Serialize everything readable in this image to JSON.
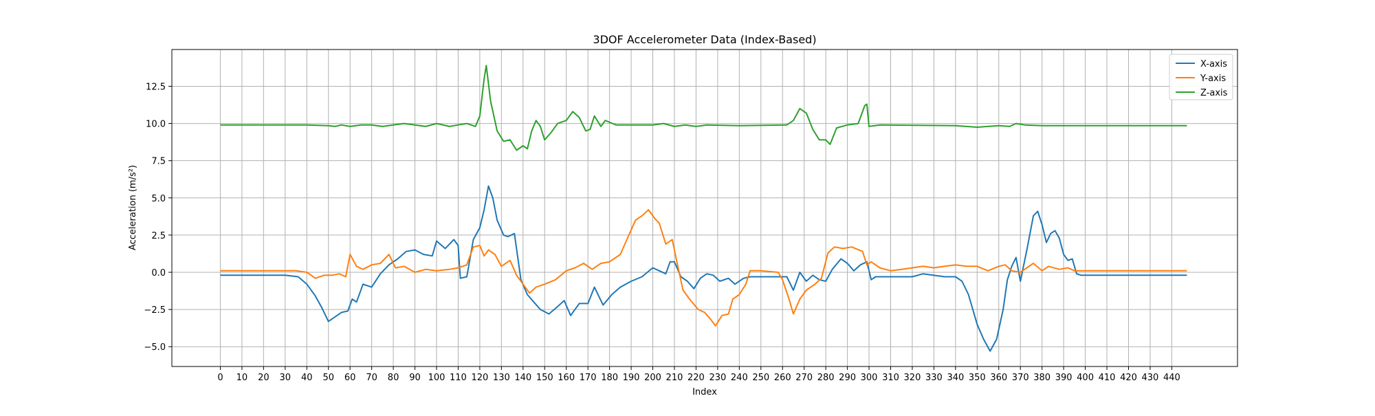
{
  "chart_data": {
    "type": "line",
    "title": "3DOF Accelerometer Data (Index-Based)",
    "xlabel": "Index",
    "ylabel": "Acceleration (m/s²)",
    "xlim": [
      -22.4,
      470.4
    ],
    "ylim": [
      -6.33,
      14.97
    ],
    "grid": true,
    "legend_position": "top-right",
    "x_ticks": [
      0,
      10,
      20,
      30,
      40,
      50,
      60,
      70,
      80,
      90,
      100,
      110,
      120,
      130,
      140,
      150,
      160,
      170,
      180,
      190,
      200,
      210,
      220,
      230,
      240,
      250,
      260,
      270,
      280,
      290,
      300,
      310,
      320,
      330,
      340,
      350,
      360,
      370,
      380,
      390,
      400,
      410,
      420,
      430,
      440
    ],
    "y_ticks": [
      -5.0,
      -2.5,
      0.0,
      2.5,
      5.0,
      7.5,
      10.0,
      12.5
    ],
    "y_tick_labels": [
      "−5.0",
      "−2.5",
      "0.0",
      "2.5",
      "5.0",
      "7.5",
      "10.0",
      "12.5"
    ],
    "series": [
      {
        "name": "X-axis",
        "color": "#1f77b4",
        "points": [
          [
            0,
            -0.2
          ],
          [
            30,
            -0.2
          ],
          [
            36,
            -0.3
          ],
          [
            40,
            -0.8
          ],
          [
            44,
            -1.6
          ],
          [
            47,
            -2.4
          ],
          [
            50,
            -3.3
          ],
          [
            53,
            -3.0
          ],
          [
            56,
            -2.7
          ],
          [
            59,
            -2.6
          ],
          [
            61,
            -1.8
          ],
          [
            63,
            -2.0
          ],
          [
            66,
            -0.8
          ],
          [
            70,
            -1.0
          ],
          [
            74,
            -0.1
          ],
          [
            78,
            0.5
          ],
          [
            82,
            0.9
          ],
          [
            86,
            1.4
          ],
          [
            90,
            1.5
          ],
          [
            94,
            1.2
          ],
          [
            98,
            1.1
          ],
          [
            100,
            2.1
          ],
          [
            104,
            1.6
          ],
          [
            108,
            2.2
          ],
          [
            110,
            1.8
          ],
          [
            111,
            -0.4
          ],
          [
            114,
            -0.3
          ],
          [
            117,
            2.2
          ],
          [
            120,
            3.0
          ],
          [
            122,
            4.2
          ],
          [
            124,
            5.8
          ],
          [
            126,
            5.0
          ],
          [
            128,
            3.5
          ],
          [
            131,
            2.5
          ],
          [
            133,
            2.4
          ],
          [
            136,
            2.6
          ],
          [
            139,
            -0.5
          ],
          [
            142,
            -1.5
          ],
          [
            145,
            -2.0
          ],
          [
            148,
            -2.5
          ],
          [
            152,
            -2.8
          ],
          [
            156,
            -2.3
          ],
          [
            159,
            -1.9
          ],
          [
            162,
            -2.9
          ],
          [
            166,
            -2.1
          ],
          [
            170,
            -2.1
          ],
          [
            173,
            -1.0
          ],
          [
            177,
            -2.2
          ],
          [
            181,
            -1.5
          ],
          [
            185,
            -1.0
          ],
          [
            190,
            -0.6
          ],
          [
            195,
            -0.3
          ],
          [
            200,
            0.3
          ],
          [
            203,
            0.1
          ],
          [
            206,
            -0.1
          ],
          [
            208,
            0.7
          ],
          [
            210,
            0.7
          ],
          [
            213,
            -0.3
          ],
          [
            216,
            -0.6
          ],
          [
            219,
            -1.1
          ],
          [
            222,
            -0.4
          ],
          [
            225,
            -0.1
          ],
          [
            228,
            -0.2
          ],
          [
            231,
            -0.6
          ],
          [
            235,
            -0.4
          ],
          [
            238,
            -0.8
          ],
          [
            242,
            -0.4
          ],
          [
            245,
            -0.3
          ],
          [
            258,
            -0.3
          ],
          [
            262,
            -0.3
          ],
          [
            265,
            -1.2
          ],
          [
            268,
            0.0
          ],
          [
            271,
            -0.6
          ],
          [
            274,
            -0.2
          ],
          [
            277,
            -0.5
          ],
          [
            280,
            -0.6
          ],
          [
            283,
            0.2
          ],
          [
            287,
            0.9
          ],
          [
            290,
            0.6
          ],
          [
            293,
            0.1
          ],
          [
            296,
            0.5
          ],
          [
            299,
            0.7
          ],
          [
            301,
            -0.5
          ],
          [
            303,
            -0.3
          ],
          [
            310,
            -0.3
          ],
          [
            320,
            -0.3
          ],
          [
            325,
            -0.1
          ],
          [
            335,
            -0.3
          ],
          [
            340,
            -0.3
          ],
          [
            343,
            -0.6
          ],
          [
            346,
            -1.5
          ],
          [
            350,
            -3.5
          ],
          [
            353,
            -4.5
          ],
          [
            356,
            -5.3
          ],
          [
            359,
            -4.5
          ],
          [
            362,
            -2.5
          ],
          [
            364,
            -0.5
          ],
          [
            366,
            0.4
          ],
          [
            368,
            1.0
          ],
          [
            370,
            -0.6
          ],
          [
            373,
            1.5
          ],
          [
            376,
            3.8
          ],
          [
            378,
            4.1
          ],
          [
            380,
            3.2
          ],
          [
            382,
            2.0
          ],
          [
            384,
            2.6
          ],
          [
            386,
            2.8
          ],
          [
            388,
            2.3
          ],
          [
            390,
            1.2
          ],
          [
            392,
            0.8
          ],
          [
            394,
            0.9
          ],
          [
            396,
            -0.1
          ],
          [
            398,
            -0.2
          ],
          [
            420,
            -0.2
          ],
          [
            447,
            -0.2
          ]
        ]
      },
      {
        "name": "Y-axis",
        "color": "#ff7f0e",
        "points": [
          [
            0,
            0.1
          ],
          [
            35,
            0.1
          ],
          [
            40,
            0.0
          ],
          [
            44,
            -0.4
          ],
          [
            48,
            -0.2
          ],
          [
            52,
            -0.2
          ],
          [
            55,
            -0.1
          ],
          [
            58,
            -0.3
          ],
          [
            60,
            1.2
          ],
          [
            63,
            0.4
          ],
          [
            66,
            0.2
          ],
          [
            70,
            0.5
          ],
          [
            74,
            0.6
          ],
          [
            78,
            1.2
          ],
          [
            81,
            0.3
          ],
          [
            85,
            0.4
          ],
          [
            90,
            0.0
          ],
          [
            95,
            0.2
          ],
          [
            100,
            0.1
          ],
          [
            106,
            0.2
          ],
          [
            110,
            0.3
          ],
          [
            114,
            0.5
          ],
          [
            117,
            1.7
          ],
          [
            120,
            1.8
          ],
          [
            122,
            1.1
          ],
          [
            124,
            1.5
          ],
          [
            127,
            1.2
          ],
          [
            130,
            0.4
          ],
          [
            134,
            0.8
          ],
          [
            137,
            -0.2
          ],
          [
            140,
            -0.8
          ],
          [
            143,
            -1.4
          ],
          [
            146,
            -1.0
          ],
          [
            150,
            -0.8
          ],
          [
            155,
            -0.5
          ],
          [
            160,
            0.1
          ],
          [
            164,
            0.3
          ],
          [
            168,
            0.6
          ],
          [
            172,
            0.2
          ],
          [
            176,
            0.6
          ],
          [
            180,
            0.7
          ],
          [
            185,
            1.2
          ],
          [
            188,
            2.2
          ],
          [
            192,
            3.5
          ],
          [
            195,
            3.8
          ],
          [
            198,
            4.2
          ],
          [
            201,
            3.6
          ],
          [
            203,
            3.3
          ],
          [
            206,
            1.9
          ],
          [
            209,
            2.2
          ],
          [
            211,
            0.8
          ],
          [
            214,
            -1.2
          ],
          [
            217,
            -1.8
          ],
          [
            221,
            -2.5
          ],
          [
            224,
            -2.7
          ],
          [
            227,
            -3.2
          ],
          [
            229,
            -3.6
          ],
          [
            232,
            -2.9
          ],
          [
            235,
            -2.8
          ],
          [
            237,
            -1.8
          ],
          [
            240,
            -1.5
          ],
          [
            243,
            -0.8
          ],
          [
            245,
            0.1
          ],
          [
            250,
            0.1
          ],
          [
            258,
            0.0
          ],
          [
            260,
            -0.5
          ],
          [
            263,
            -1.8
          ],
          [
            265,
            -2.8
          ],
          [
            268,
            -1.8
          ],
          [
            271,
            -1.2
          ],
          [
            275,
            -0.8
          ],
          [
            278,
            -0.4
          ],
          [
            281,
            1.3
          ],
          [
            284,
            1.7
          ],
          [
            288,
            1.6
          ],
          [
            292,
            1.7
          ],
          [
            297,
            1.4
          ],
          [
            299,
            0.5
          ],
          [
            301,
            0.7
          ],
          [
            305,
            0.3
          ],
          [
            310,
            0.1
          ],
          [
            315,
            0.2
          ],
          [
            320,
            0.3
          ],
          [
            325,
            0.4
          ],
          [
            330,
            0.3
          ],
          [
            335,
            0.4
          ],
          [
            340,
            0.5
          ],
          [
            345,
            0.4
          ],
          [
            350,
            0.4
          ],
          [
            355,
            0.1
          ],
          [
            360,
            0.4
          ],
          [
            363,
            0.5
          ],
          [
            366,
            0.1
          ],
          [
            370,
            0.0
          ],
          [
            373,
            0.3
          ],
          [
            376,
            0.6
          ],
          [
            380,
            0.1
          ],
          [
            383,
            0.4
          ],
          [
            388,
            0.2
          ],
          [
            392,
            0.3
          ],
          [
            395,
            0.1
          ],
          [
            420,
            0.1
          ],
          [
            447,
            0.1
          ]
        ]
      },
      {
        "name": "Z-axis",
        "color": "#2ca02c",
        "points": [
          [
            0,
            9.9
          ],
          [
            40,
            9.9
          ],
          [
            50,
            9.85
          ],
          [
            53,
            9.8
          ],
          [
            56,
            9.9
          ],
          [
            60,
            9.8
          ],
          [
            65,
            9.9
          ],
          [
            70,
            9.9
          ],
          [
            75,
            9.8
          ],
          [
            80,
            9.9
          ],
          [
            85,
            10.0
          ],
          [
            90,
            9.9
          ],
          [
            95,
            9.8
          ],
          [
            100,
            10.0
          ],
          [
            106,
            9.8
          ],
          [
            110,
            9.9
          ],
          [
            114,
            10.0
          ],
          [
            118,
            9.8
          ],
          [
            120,
            10.5
          ],
          [
            122,
            13.0
          ],
          [
            123,
            13.9
          ],
          [
            125,
            11.5
          ],
          [
            128,
            9.5
          ],
          [
            131,
            8.8
          ],
          [
            134,
            8.9
          ],
          [
            137,
            8.2
          ],
          [
            140,
            8.5
          ],
          [
            142,
            8.3
          ],
          [
            144,
            9.5
          ],
          [
            146,
            10.2
          ],
          [
            148,
            9.8
          ],
          [
            150,
            8.9
          ],
          [
            153,
            9.4
          ],
          [
            156,
            10.0
          ],
          [
            160,
            10.2
          ],
          [
            163,
            10.8
          ],
          [
            166,
            10.4
          ],
          [
            169,
            9.5
          ],
          [
            171,
            9.6
          ],
          [
            173,
            10.5
          ],
          [
            176,
            9.8
          ],
          [
            178,
            10.2
          ],
          [
            183,
            9.9
          ],
          [
            200,
            9.9
          ],
          [
            205,
            10.0
          ],
          [
            210,
            9.8
          ],
          [
            215,
            9.9
          ],
          [
            220,
            9.8
          ],
          [
            225,
            9.9
          ],
          [
            240,
            9.85
          ],
          [
            262,
            9.9
          ],
          [
            265,
            10.2
          ],
          [
            268,
            11.0
          ],
          [
            271,
            10.7
          ],
          [
            274,
            9.6
          ],
          [
            277,
            8.9
          ],
          [
            280,
            8.9
          ],
          [
            282,
            8.6
          ],
          [
            285,
            9.7
          ],
          [
            290,
            9.9
          ],
          [
            295,
            10.0
          ],
          [
            298,
            11.2
          ],
          [
            299,
            11.3
          ],
          [
            300,
            9.8
          ],
          [
            305,
            9.9
          ],
          [
            340,
            9.85
          ],
          [
            350,
            9.75
          ],
          [
            355,
            9.8
          ],
          [
            360,
            9.85
          ],
          [
            365,
            9.8
          ],
          [
            368,
            10.0
          ],
          [
            372,
            9.9
          ],
          [
            380,
            9.85
          ],
          [
            400,
            9.85
          ],
          [
            447,
            9.85
          ]
        ]
      }
    ]
  }
}
